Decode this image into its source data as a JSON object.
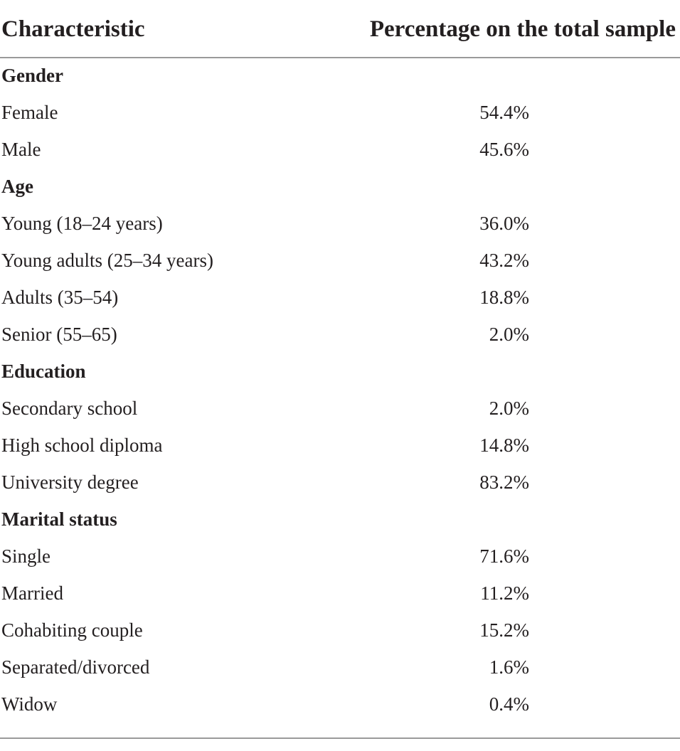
{
  "table": {
    "headers": {
      "characteristic": "Characteristic",
      "percentage": "Percentage on the total sample"
    },
    "rows": [
      {
        "label": "Gender",
        "value": "",
        "section": true
      },
      {
        "label": "Female",
        "value": "54.4%",
        "section": false
      },
      {
        "label": "Male",
        "value": "45.6%",
        "section": false
      },
      {
        "label": "Age",
        "value": "",
        "section": true
      },
      {
        "label": "Young (18–24 years)",
        "value": "36.0%",
        "section": false
      },
      {
        "label": "Young adults (25–34 years)",
        "value": "43.2%",
        "section": false
      },
      {
        "label": "Adults (35–54)",
        "value": "18.8%",
        "section": false
      },
      {
        "label": "Senior (55–65)",
        "value": "2.0%",
        "section": false
      },
      {
        "label": "Education",
        "value": "",
        "section": true
      },
      {
        "label": "Secondary school",
        "value": "2.0%",
        "section": false
      },
      {
        "label": "High school diploma",
        "value": "14.8%",
        "section": false
      },
      {
        "label": "University degree",
        "value": "83.2%",
        "section": false
      },
      {
        "label": "Marital status",
        "value": "",
        "section": true
      },
      {
        "label": "Single",
        "value": "71.6%",
        "section": false
      },
      {
        "label": "Married",
        "value": "11.2%",
        "section": false
      },
      {
        "label": "Cohabiting couple",
        "value": "15.2%",
        "section": false
      },
      {
        "label": "Separated/divorced",
        "value": "1.6%",
        "section": false
      },
      {
        "label": "Widow",
        "value": "0.4%",
        "section": false
      }
    ]
  }
}
